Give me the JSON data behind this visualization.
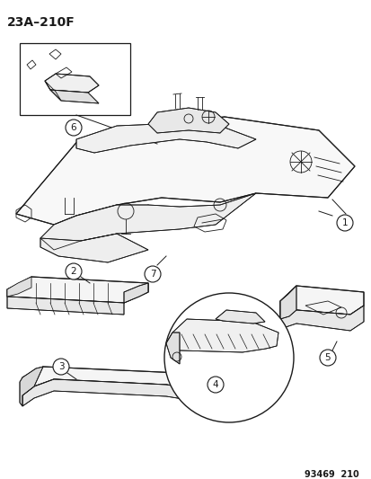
{
  "title": "23A–210F",
  "footer": "93469  210",
  "bg_color": "#ffffff",
  "line_color": "#1a1a1a",
  "fig_width": 4.14,
  "fig_height": 5.33,
  "dpi": 100,
  "title_fontsize": 10,
  "footer_fontsize": 7,
  "callout_fontsize": 7.5
}
